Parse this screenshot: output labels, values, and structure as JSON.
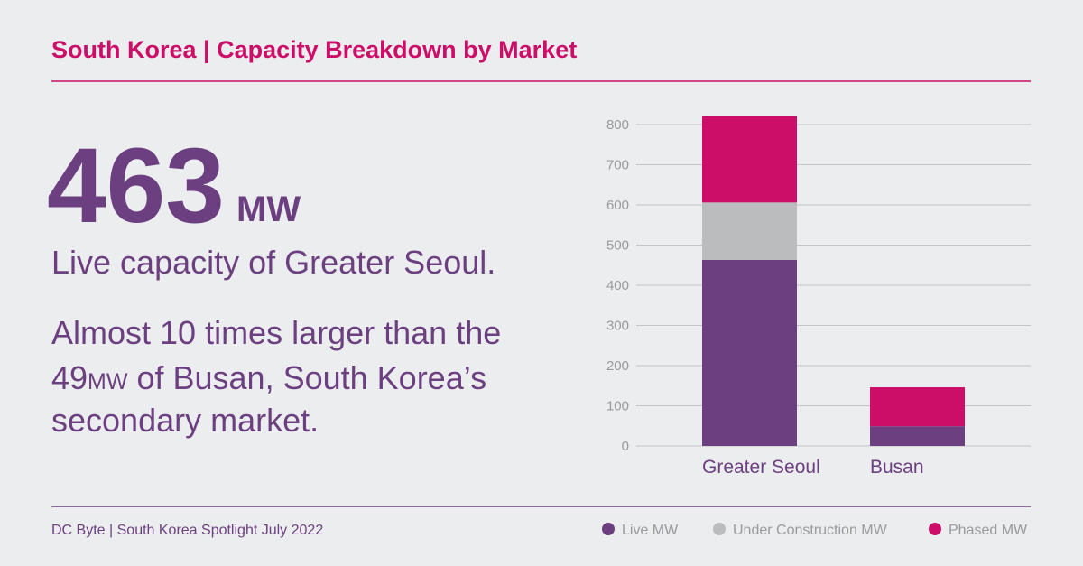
{
  "chart_data": {
    "type": "stacked-bar",
    "title": "South Korea | Capacity Breakdown by Market",
    "categories": [
      "Greater Seoul",
      "Busan"
    ],
    "series": [
      {
        "name": "Live MW",
        "color": "#6c3f80",
        "values": [
          463,
          49
        ]
      },
      {
        "name": "Under Construction MW",
        "color": "#bbbcbe",
        "values": [
          143,
          0
        ]
      },
      {
        "name": "Phased MW",
        "color": "#cc0e68",
        "values": [
          216,
          97
        ]
      }
    ],
    "ylim": [
      0,
      800
    ],
    "yticks": [
      0,
      100,
      200,
      300,
      400,
      500,
      600,
      700,
      800
    ],
    "grid": true
  },
  "highlight": {
    "value": "463",
    "unit": "MW",
    "caption": "Live capacity of Greater Seoul."
  },
  "paragraph": {
    "line1": "Almost 10 times larger than the",
    "line2": [
      "49",
      "MW",
      " of Busan, South Korea’s"
    ],
    "line3": "secondary market."
  },
  "footer": "DC Byte | South Korea Spotlight July 2022"
}
